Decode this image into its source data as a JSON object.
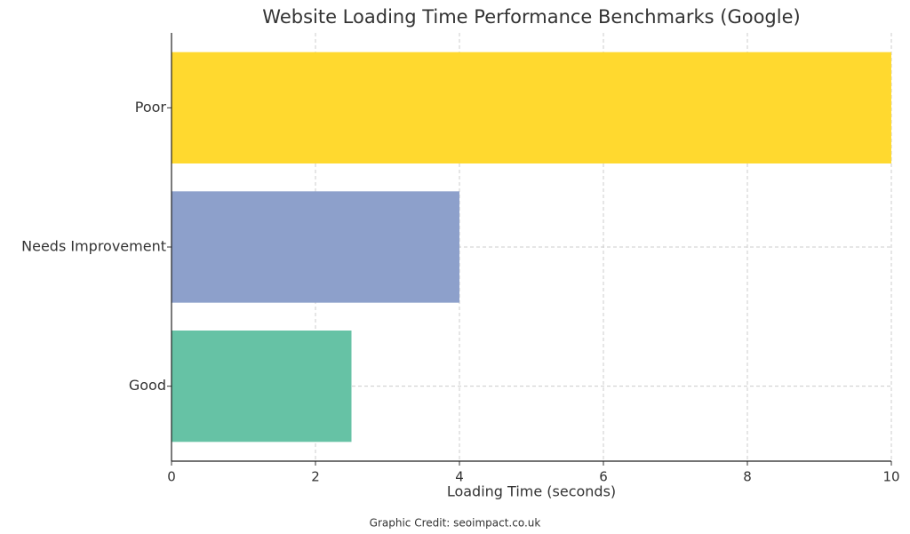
{
  "chart_data": {
    "type": "barh",
    "title": "Website Loading Time Performance Benchmarks (Google)",
    "x_label": "Loading Time (seconds)",
    "categories": [
      "Poor",
      "Needs Improvement",
      "Good"
    ],
    "values": [
      10,
      4,
      2.5
    ],
    "colors": [
      "#ffd92f",
      "#8da0cb",
      "#66c2a5"
    ],
    "xlim": [
      0,
      10
    ],
    "xticks": [
      0,
      2,
      4,
      6,
      8,
      10
    ],
    "grid": true,
    "credit": "Graphic Credit: seoimpact.co.uk"
  }
}
